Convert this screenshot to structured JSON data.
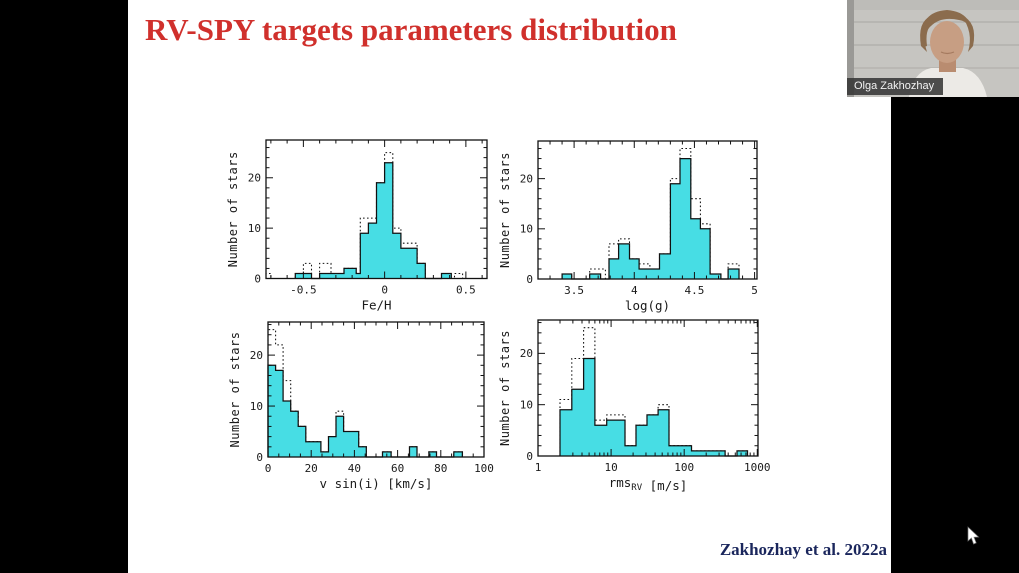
{
  "slide": {
    "title": "RV-SPY targets parameters distribution",
    "citation": "Zakhozhay et al. 2022a"
  },
  "webcam": {
    "name_label": "Olga Zakhozhay"
  },
  "colors": {
    "title_red": "#d0302c",
    "citation_navy": "#1a265c",
    "histogram_fill": "#47dde4",
    "axis_black": "#111111",
    "slide_bg": "#ffffff",
    "letterbox": "#000000"
  },
  "chart_data": [
    {
      "id": "feh",
      "type": "bar",
      "subtype": "step-histogram",
      "xlabel_parts": [
        {
          "t": "Fe/H"
        }
      ],
      "ylabel": "Number of stars",
      "x": {
        "min": -0.73,
        "max": 0.63,
        "log": false,
        "minor_step": 0.1,
        "majors": [
          {
            "v": -0.5,
            "label": "-0.5"
          },
          {
            "v": 0,
            "label": "0"
          },
          {
            "v": 0.5,
            "label": "0.5"
          }
        ]
      },
      "y": {
        "max": 27.5,
        "minor_step": 2,
        "majors": [
          {
            "v": 0,
            "label": "0"
          },
          {
            "v": 10,
            "label": "10"
          },
          {
            "v": 20,
            "label": "20"
          }
        ]
      },
      "series": [
        {
          "name": "dotted-sample",
          "style": "dotted",
          "bins": [
            [
              -0.73,
              -0.7,
              1
            ],
            [
              -0.55,
              -0.5,
              1
            ],
            [
              -0.5,
              -0.45,
              3
            ],
            [
              -0.4,
              -0.33,
              3
            ],
            [
              -0.33,
              -0.25,
              1
            ],
            [
              -0.25,
              -0.175,
              2
            ],
            [
              -0.175,
              -0.15,
              1
            ],
            [
              -0.15,
              -0.1,
              12
            ],
            [
              -0.1,
              -0.05,
              12
            ],
            [
              -0.05,
              0.0,
              19
            ],
            [
              0.0,
              0.05,
              25
            ],
            [
              0.05,
              0.1,
              10
            ],
            [
              0.1,
              0.15,
              7
            ],
            [
              0.15,
              0.2,
              7
            ],
            [
              0.2,
              0.25,
              3
            ],
            [
              0.43,
              0.48,
              1
            ]
          ]
        },
        {
          "name": "solid-filled-sample",
          "style": "solid",
          "bins": [
            [
              -0.55,
              -0.45,
              1
            ],
            [
              -0.4,
              -0.25,
              1
            ],
            [
              -0.25,
              -0.175,
              2
            ],
            [
              -0.175,
              -0.15,
              1
            ],
            [
              -0.15,
              -0.1,
              9
            ],
            [
              -0.1,
              -0.05,
              11
            ],
            [
              -0.05,
              0.0,
              19
            ],
            [
              0.0,
              0.05,
              23
            ],
            [
              0.05,
              0.1,
              9
            ],
            [
              0.1,
              0.15,
              6
            ],
            [
              0.15,
              0.2,
              6
            ],
            [
              0.2,
              0.25,
              3
            ],
            [
              0.35,
              0.41,
              1
            ]
          ]
        }
      ]
    },
    {
      "id": "logg",
      "type": "bar",
      "subtype": "step-histogram",
      "xlabel_parts": [
        {
          "t": "log(g)"
        }
      ],
      "ylabel": "Number of stars",
      "x": {
        "min": 3.2,
        "max": 5.02,
        "log": false,
        "minor_step": 0.1,
        "majors": [
          {
            "v": 3.5,
            "label": "3.5"
          },
          {
            "v": 4,
            "label": "4"
          },
          {
            "v": 4.5,
            "label": "4.5"
          },
          {
            "v": 5,
            "label": "5"
          }
        ]
      },
      "y": {
        "max": 27.5,
        "minor_step": 2,
        "majors": [
          {
            "v": 0,
            "label": "0"
          },
          {
            "v": 10,
            "label": "10"
          },
          {
            "v": 20,
            "label": "20"
          }
        ]
      },
      "series": [
        {
          "name": "dotted-sample",
          "style": "dotted",
          "bins": [
            [
              3.4,
              3.48,
              1
            ],
            [
              3.63,
              3.76,
              2
            ],
            [
              3.79,
              3.87,
              7
            ],
            [
              3.87,
              3.96,
              8
            ],
            [
              3.96,
              4.04,
              4
            ],
            [
              4.04,
              4.13,
              3
            ],
            [
              4.13,
              4.21,
              2
            ],
            [
              4.21,
              4.3,
              5
            ],
            [
              4.3,
              4.38,
              20
            ],
            [
              4.38,
              4.47,
              26
            ],
            [
              4.47,
              4.55,
              16
            ],
            [
              4.55,
              4.63,
              11
            ],
            [
              4.63,
              4.72,
              1
            ],
            [
              4.78,
              4.87,
              3
            ]
          ]
        },
        {
          "name": "solid-filled-sample",
          "style": "solid",
          "bins": [
            [
              3.4,
              3.48,
              1
            ],
            [
              3.63,
              3.72,
              1
            ],
            [
              3.79,
              3.87,
              4
            ],
            [
              3.87,
              3.96,
              7
            ],
            [
              3.96,
              4.04,
              4
            ],
            [
              4.04,
              4.21,
              2
            ],
            [
              4.21,
              4.3,
              5
            ],
            [
              4.3,
              4.38,
              19
            ],
            [
              4.38,
              4.47,
              24
            ],
            [
              4.47,
              4.55,
              12
            ],
            [
              4.55,
              4.63,
              10
            ],
            [
              4.63,
              4.72,
              1
            ],
            [
              4.78,
              4.87,
              2
            ]
          ]
        }
      ]
    },
    {
      "id": "vsini",
      "type": "bar",
      "subtype": "step-histogram",
      "xlabel_parts": [
        {
          "t": "v sin(i) [km/s]"
        }
      ],
      "ylabel": "Number of stars",
      "x": {
        "min": 0,
        "max": 100,
        "log": false,
        "minor_step": 5,
        "majors": [
          {
            "v": 0,
            "label": "0"
          },
          {
            "v": 20,
            "label": "20"
          },
          {
            "v": 40,
            "label": "40"
          },
          {
            "v": 60,
            "label": "60"
          },
          {
            "v": 80,
            "label": "80"
          },
          {
            "v": 100,
            "label": "100"
          }
        ]
      },
      "y": {
        "max": 26.5,
        "minor_step": 2,
        "majors": [
          {
            "v": 0,
            "label": "0"
          },
          {
            "v": 10,
            "label": "10"
          },
          {
            "v": 20,
            "label": "20"
          }
        ]
      },
      "series": [
        {
          "name": "dotted-sample",
          "style": "dotted",
          "bins": [
            [
              0,
              3.5,
              25
            ],
            [
              3.5,
              7,
              22
            ],
            [
              7,
              10.5,
              15
            ],
            [
              10.5,
              14,
              9
            ],
            [
              14,
              17.5,
              6
            ],
            [
              17.5,
              24.5,
              3
            ],
            [
              24.5,
              28,
              1
            ],
            [
              28,
              31.5,
              4
            ],
            [
              31.5,
              35,
              9
            ],
            [
              35,
              42,
              5
            ],
            [
              42,
              45.5,
              2
            ],
            [
              53,
              57,
              1
            ],
            [
              65.5,
              69,
              2
            ],
            [
              74.5,
              78,
              1
            ],
            [
              86,
              90,
              1
            ]
          ]
        },
        {
          "name": "solid-filled-sample",
          "style": "solid",
          "bins": [
            [
              0,
              3.5,
              18
            ],
            [
              3.5,
              7,
              17
            ],
            [
              7,
              10.5,
              11
            ],
            [
              10.5,
              14,
              9
            ],
            [
              14,
              17.5,
              6
            ],
            [
              17.5,
              24.5,
              3
            ],
            [
              24.5,
              28,
              1
            ],
            [
              28,
              31.5,
              4
            ],
            [
              31.5,
              35,
              8
            ],
            [
              35,
              42,
              5
            ],
            [
              42,
              45.5,
              2
            ],
            [
              53,
              57,
              1
            ],
            [
              65.5,
              69,
              2
            ],
            [
              74.5,
              78,
              1
            ],
            [
              86,
              90,
              1
            ]
          ]
        }
      ]
    },
    {
      "id": "rmsrv",
      "type": "bar",
      "subtype": "step-histogram",
      "xlabel_parts": [
        {
          "t": "rms"
        },
        {
          "t": "RV",
          "sub": true
        },
        {
          "t": " [m/s]"
        }
      ],
      "ylabel": "Number of stars",
      "x": {
        "min": 1,
        "max": 1023,
        "log": true,
        "majors": [
          {
            "v": 1,
            "label": "1"
          },
          {
            "v": 10,
            "label": "10"
          },
          {
            "v": 100,
            "label": "100"
          },
          {
            "v": 1000,
            "label": "1000"
          }
        ]
      },
      "y": {
        "max": 26.5,
        "minor_step": 2,
        "majors": [
          {
            "v": 0,
            "label": "0"
          },
          {
            "v": 10,
            "label": "10"
          },
          {
            "v": 20,
            "label": "20"
          }
        ]
      },
      "series": [
        {
          "name": "dotted-sample",
          "style": "dotted",
          "bins": [
            [
              2,
              2.9,
              11
            ],
            [
              2.9,
              4.2,
              19
            ],
            [
              4.2,
              6,
              25
            ],
            [
              6,
              8.7,
              7
            ],
            [
              8.7,
              15.5,
              8
            ],
            [
              15.5,
              21.9,
              2
            ],
            [
              21.9,
              31,
              6
            ],
            [
              31,
              44,
              8
            ],
            [
              44,
              62,
              10
            ],
            [
              62,
              89,
              2
            ],
            [
              89,
              126,
              2
            ],
            [
              126,
              363,
              1
            ],
            [
              528,
              734,
              1
            ]
          ]
        },
        {
          "name": "solid-filled-sample",
          "style": "solid",
          "bins": [
            [
              2,
              2.9,
              9
            ],
            [
              2.9,
              4.2,
              13
            ],
            [
              4.2,
              6,
              19
            ],
            [
              6,
              8.7,
              6
            ],
            [
              8.7,
              15.5,
              7
            ],
            [
              15.5,
              21.9,
              2
            ],
            [
              21.9,
              31,
              6
            ],
            [
              31,
              44,
              8
            ],
            [
              44,
              62,
              9
            ],
            [
              62,
              89,
              2
            ],
            [
              89,
              126,
              2
            ],
            [
              126,
              363,
              1
            ],
            [
              528,
              734,
              1
            ]
          ]
        }
      ]
    }
  ]
}
